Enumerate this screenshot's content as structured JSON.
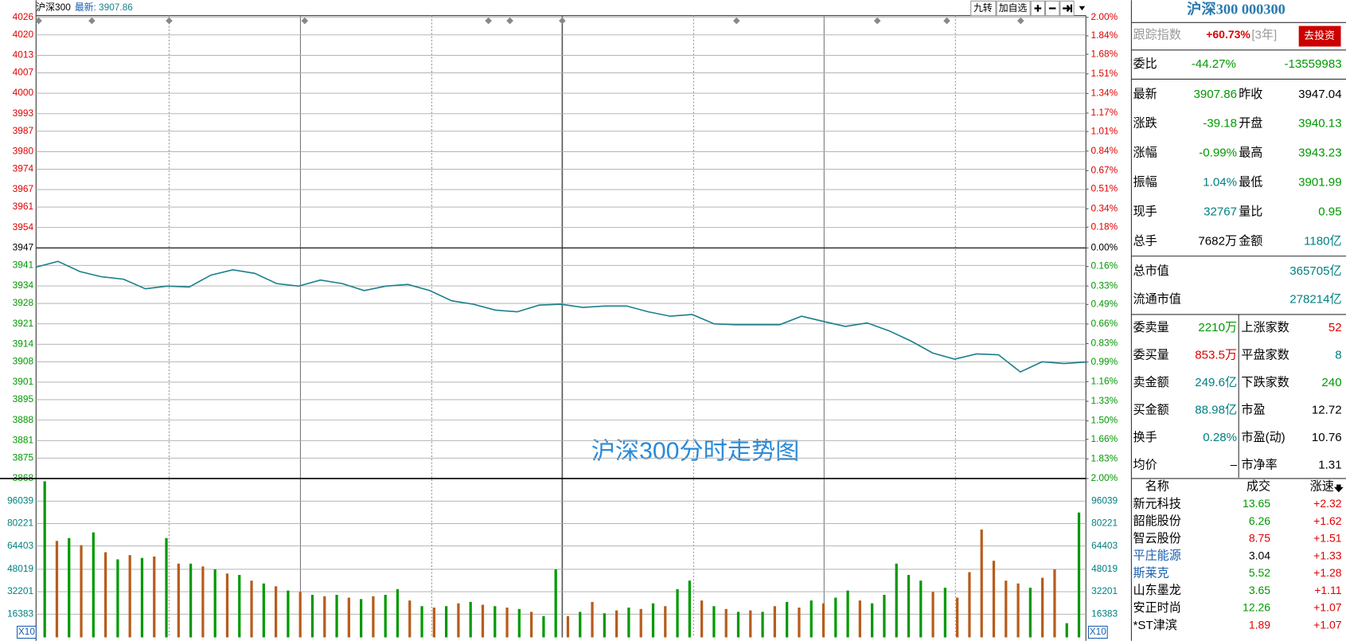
{
  "header": {
    "name": "沪深300",
    "latest_label": "最新:",
    "latest": "3907.86",
    "buttons": [
      "九转",
      "加自选"
    ]
  },
  "watermark": "沪深300分时走势图",
  "chart_data": [
    {
      "type": "line",
      "color": "#1a7f8a",
      "grid": true,
      "values": [
        3940.4,
        3942.4,
        3938.9,
        3937.1,
        3936.3,
        3933.0,
        3933.9,
        3933.6,
        3937.7,
        3939.5,
        3938.3,
        3934.8,
        3933.9,
        3936.0,
        3934.8,
        3932.4,
        3933.9,
        3934.5,
        3932.4,
        3928.9,
        3927.7,
        3925.7,
        3925.1,
        3927.4,
        3927.7,
        3926.6,
        3927.1,
        3927.1,
        3925.1,
        3923.6,
        3924.2,
        3921.0,
        3920.7,
        3920.7,
        3920.7,
        3923.6,
        3921.8,
        3920.1,
        3921.3,
        3918.6,
        3915.1,
        3911.0,
        3908.9,
        3910.7,
        3910.4,
        3904.5,
        3908.0,
        3907.4,
        3907.9
      ],
      "ylim": [
        3868,
        4026
      ],
      "yticks": [
        4026,
        4020,
        4013,
        4007,
        4000,
        3993,
        3987,
        3980,
        3974,
        3967,
        3961,
        3954,
        3947,
        3941,
        3934,
        3928,
        3921,
        3914,
        3908,
        3901,
        3895,
        3888,
        3881,
        3875,
        3868
      ],
      "y2lim": [
        -2,
        2
      ],
      "y2ticks": [
        {
          "value": 2.0,
          "label": "2.00%"
        },
        {
          "value": 1.84,
          "label": "1.84%"
        },
        {
          "value": 1.68,
          "label": "1.68%"
        },
        {
          "value": 1.51,
          "label": "1.51%"
        },
        {
          "value": 1.34,
          "label": "1.34%"
        },
        {
          "value": 1.17,
          "label": "1.17%"
        },
        {
          "value": 1.01,
          "label": "1.01%"
        },
        {
          "value": 0.84,
          "label": "0.84%"
        },
        {
          "value": 0.67,
          "label": "0.67%"
        },
        {
          "value": 0.51,
          "label": "0.51%"
        },
        {
          "value": 0.34,
          "label": "0.34%"
        },
        {
          "value": 0.18,
          "label": "0.18%"
        },
        {
          "value": 0,
          "label": "0.00%"
        },
        {
          "value": -0.16,
          "label": "0.16%"
        },
        {
          "value": -0.33,
          "label": "0.33%"
        },
        {
          "value": -0.49,
          "label": "0.49%"
        },
        {
          "value": -0.66,
          "label": "0.66%"
        },
        {
          "value": -0.83,
          "label": "0.83%"
        },
        {
          "value": -0.99,
          "label": "0.99%"
        },
        {
          "value": -1.16,
          "label": "1.16%"
        },
        {
          "value": -1.33,
          "label": "1.33%"
        },
        {
          "value": -1.5,
          "label": "1.50%"
        },
        {
          "value": -1.66,
          "label": "1.66%"
        },
        {
          "value": -1.83,
          "label": "1.83%"
        },
        {
          "value": -2.0,
          "label": "2.00%"
        }
      ]
    },
    {
      "type": "bar",
      "scale_label": "X10",
      "values": [
        110000,
        68000,
        70000,
        65000,
        74000,
        60000,
        55000,
        58000,
        56000,
        57000,
        70000,
        52000,
        52000,
        50000,
        48000,
        45000,
        44000,
        40000,
        38000,
        36000,
        33000,
        32000,
        30000,
        29000,
        30000,
        28000,
        27000,
        29000,
        30000,
        34000,
        26000,
        22000,
        21000,
        22000,
        24000,
        25000,
        23000,
        22000,
        21000,
        20000,
        18000,
        15000,
        48000,
        15000,
        18000,
        25000,
        17000,
        19000,
        21000,
        20000,
        24000,
        22000,
        34000,
        40000,
        26000,
        22000,
        20000,
        18000,
        19000,
        18000,
        22000,
        25000,
        21000,
        26000,
        24000,
        28000,
        33000,
        26000,
        24000,
        30000,
        52000,
        44000,
        40000,
        32000,
        35000,
        28000,
        46000,
        76000,
        54000,
        40000,
        38000,
        35000,
        42000,
        48000,
        10000,
        88000
      ],
      "colors": [
        "#009900",
        "#b85c1a",
        "#009900",
        "#b85c1a",
        "#009900",
        "#b85c1a",
        "#009900",
        "#b85c1a",
        "#009900",
        "#b85c1a",
        "#009900",
        "#b85c1a",
        "#009900",
        "#b85c1a",
        "#009900",
        "#b85c1a",
        "#009900",
        "#b85c1a",
        "#009900",
        "#b85c1a",
        "#009900",
        "#b85c1a",
        "#009900",
        "#b85c1a",
        "#009900",
        "#b85c1a",
        "#009900",
        "#b85c1a",
        "#009900",
        "#009900",
        "#b85c1a",
        "#009900",
        "#b85c1a",
        "#009900",
        "#b85c1a",
        "#009900",
        "#b85c1a",
        "#009900",
        "#b85c1a",
        "#009900",
        "#b85c1a",
        "#009900",
        "#009900",
        "#b85c1a",
        "#009900",
        "#b85c1a",
        "#009900",
        "#b85c1a",
        "#009900",
        "#b85c1a",
        "#009900",
        "#b85c1a",
        "#009900",
        "#009900",
        "#b85c1a",
        "#009900",
        "#b85c1a",
        "#009900",
        "#b85c1a",
        "#009900",
        "#b85c1a",
        "#009900",
        "#b85c1a",
        "#009900",
        "#b85c1a",
        "#009900",
        "#009900",
        "#b85c1a",
        "#009900",
        "#009900",
        "#009900",
        "#009900",
        "#009900",
        "#b85c1a",
        "#009900",
        "#b85c1a",
        "#b85c1a",
        "#b85c1a",
        "#b85c1a",
        "#b85c1a",
        "#b85c1a",
        "#009900",
        "#b85c1a",
        "#b85c1a",
        "#009900",
        "#009900"
      ],
      "ylim": [
        0,
        112000
      ],
      "yticks": [
        96039,
        80221,
        64403,
        48019,
        32201,
        16383
      ]
    }
  ],
  "panel": {
    "title": "沪深300 000300",
    "track": {
      "label": "跟踪指数",
      "value": "+60.73%",
      "period": "[3年]",
      "button": "去投资"
    },
    "weibi": {
      "label": "委比",
      "ratio": "-44.27%",
      "diff": "-13559983"
    },
    "quotes": [
      [
        "最新",
        "3907.86",
        "昨收",
        "3947.04"
      ],
      [
        "涨跌",
        "-39.18",
        "开盘",
        "3940.13"
      ],
      [
        "涨幅",
        "-0.99%",
        "最高",
        "3943.23"
      ],
      [
        "振幅",
        "1.04%",
        "最低",
        "3901.99"
      ],
      [
        "现手",
        "32767",
        "量比",
        "0.95"
      ],
      [
        "总手",
        "7682万",
        "金额",
        "1180亿"
      ]
    ],
    "caps": [
      [
        "总市值",
        "365705亿"
      ],
      [
        "流通市值",
        "278214亿"
      ]
    ],
    "stats": [
      [
        "委卖量",
        "2210万",
        "上涨家数",
        "52"
      ],
      [
        "委买量",
        "853.5万",
        "平盘家数",
        "8"
      ],
      [
        "卖金额",
        "249.6亿",
        "下跌家数",
        "240"
      ],
      [
        "买金额",
        "88.98亿",
        "市盈",
        "12.72"
      ],
      [
        "换手",
        "0.28%",
        "市盈(动)",
        "10.76"
      ],
      [
        "均价",
        "–",
        "市净率",
        "1.31"
      ]
    ],
    "list": {
      "headers": [
        "名称",
        "成交",
        "涨速"
      ],
      "rows": [
        [
          "新元科技",
          "13.65",
          "+2.32"
        ],
        [
          "韶能股份",
          "6.26",
          "+1.62"
        ],
        [
          "智云股份",
          "8.75",
          "+1.51"
        ],
        [
          "平庄能源",
          "3.04",
          "+1.33"
        ],
        [
          "斯莱克",
          "5.52",
          "+1.28"
        ],
        [
          "山东墨龙",
          "3.65",
          "+1.11"
        ],
        [
          "安正时尚",
          "12.26",
          "+1.07"
        ],
        [
          "*ST津滨",
          "1.89",
          "+1.07"
        ]
      ]
    }
  }
}
